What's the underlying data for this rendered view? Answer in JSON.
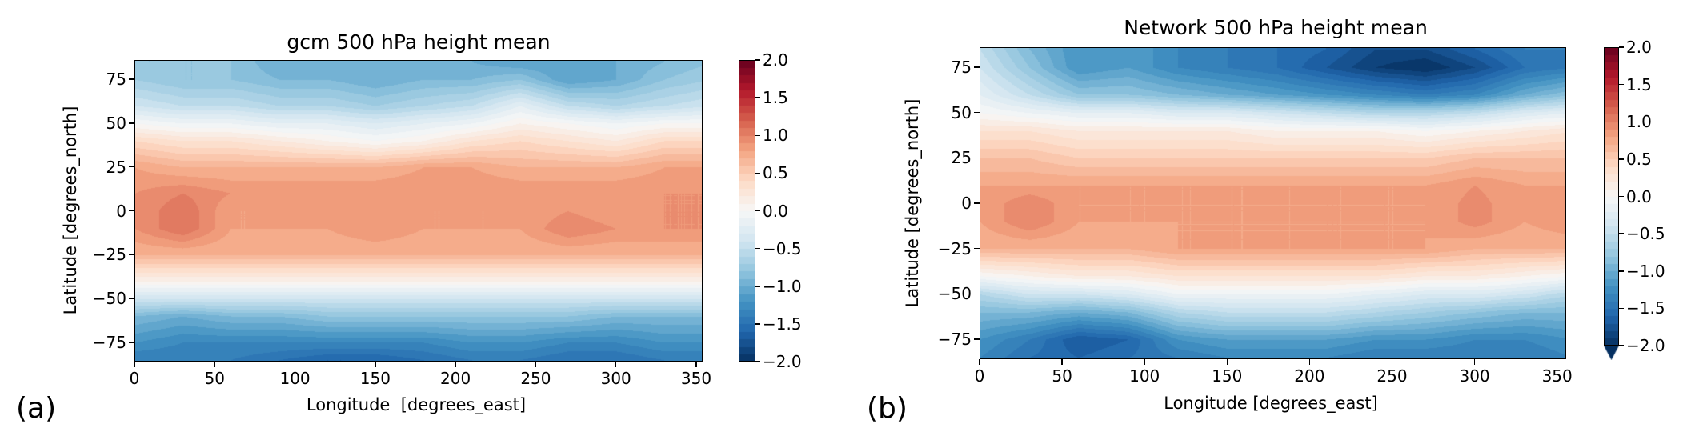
{
  "chart_data": [
    {
      "type": "heatmap",
      "panel_label": "(a)",
      "title": "gcm 500  hPa height mean",
      "xlabel": "Longitude  [degrees_east]",
      "ylabel": "Latitude  [degrees_north]",
      "xlim": [
        0,
        354
      ],
      "ylim": [
        -86,
        86
      ],
      "xticks": [
        0,
        50,
        100,
        150,
        200,
        250,
        300,
        350
      ],
      "yticks": [
        75,
        50,
        25,
        0,
        -25,
        -50,
        -75
      ],
      "colormap": "RdBu_r",
      "colorbar": {
        "range": [
          -2.0,
          2.0
        ],
        "ticks": [
          "2.0",
          "1.5",
          "1.0",
          "0.5",
          "0.0",
          "−0.5",
          "−1.0",
          "−1.5",
          "−2.0"
        ],
        "extend": "neither"
      },
      "lon": [
        0,
        30,
        60,
        90,
        120,
        150,
        180,
        210,
        240,
        270,
        300,
        330,
        360
      ],
      "lat": [
        85,
        75,
        60,
        50,
        40,
        25,
        10,
        0,
        -10,
        -25,
        -40,
        -50,
        -60,
        -75,
        -85
      ],
      "values": [
        [
          -0.8,
          -0.8,
          -0.8,
          -1.0,
          -1.0,
          -1.0,
          -1.0,
          -1.0,
          -1.1,
          -1.1,
          -1.0,
          -0.9,
          -0.8
        ],
        [
          -0.7,
          -0.8,
          -0.8,
          -0.9,
          -0.9,
          -1.0,
          -0.9,
          -0.9,
          -0.8,
          -1.1,
          -1.0,
          -0.8,
          -0.7
        ],
        [
          -0.4,
          -0.5,
          -0.5,
          -0.6,
          -0.6,
          -0.7,
          -0.6,
          -0.5,
          -0.2,
          -0.5,
          -0.6,
          -0.5,
          -0.4
        ],
        [
          0.0,
          -0.1,
          -0.1,
          -0.2,
          -0.2,
          -0.3,
          -0.2,
          -0.1,
          0.1,
          0.0,
          -0.1,
          0.0,
          0.0
        ],
        [
          0.4,
          0.3,
          0.3,
          0.2,
          0.1,
          0.0,
          0.1,
          0.3,
          0.4,
          0.3,
          0.2,
          0.4,
          0.4
        ],
        [
          0.8,
          0.7,
          0.7,
          0.7,
          0.7,
          0.7,
          0.8,
          0.8,
          0.7,
          0.7,
          0.7,
          0.8,
          0.8
        ],
        [
          0.9,
          1.0,
          0.9,
          0.9,
          0.9,
          0.9,
          0.9,
          0.9,
          0.9,
          0.9,
          0.9,
          0.9,
          0.9
        ],
        [
          0.9,
          1.1,
          0.8,
          0.8,
          0.8,
          0.9,
          0.8,
          0.8,
          0.8,
          0.9,
          0.8,
          0.9,
          0.9
        ],
        [
          0.9,
          1.1,
          0.8,
          0.8,
          0.8,
          0.9,
          0.8,
          0.8,
          0.8,
          1.0,
          0.9,
          0.9,
          0.9
        ],
        [
          0.7,
          0.7,
          0.7,
          0.7,
          0.7,
          0.7,
          0.7,
          0.7,
          0.7,
          0.7,
          0.7,
          0.7,
          0.7
        ],
        [
          0.1,
          0.1,
          0.1,
          0.1,
          0.1,
          0.1,
          0.1,
          0.1,
          0.1,
          0.1,
          0.1,
          0.1,
          0.1
        ],
        [
          -0.4,
          -0.4,
          -0.4,
          -0.4,
          -0.4,
          -0.4,
          -0.4,
          -0.4,
          -0.4,
          -0.4,
          -0.4,
          -0.4,
          -0.4
        ],
        [
          -0.9,
          -1.0,
          -0.9,
          -0.9,
          -0.8,
          -0.8,
          -0.8,
          -0.8,
          -0.8,
          -0.8,
          -0.9,
          -0.9,
          -0.9
        ],
        [
          -1.2,
          -1.3,
          -1.3,
          -1.3,
          -1.3,
          -1.3,
          -1.3,
          -1.2,
          -1.2,
          -1.3,
          -1.3,
          -1.2,
          -1.2
        ],
        [
          -1.4,
          -1.4,
          -1.4,
          -1.5,
          -1.6,
          -1.6,
          -1.5,
          -1.4,
          -1.4,
          -1.5,
          -1.5,
          -1.4,
          -1.4
        ]
      ]
    },
    {
      "type": "heatmap",
      "panel_label": "(b)",
      "title": "Network 500  hPa height  mean",
      "xlabel": "Longitude [degrees_east]",
      "ylabel": "Latitude [degrees_north]",
      "xlim": [
        0,
        355.5
      ],
      "ylim": [
        -86,
        86
      ],
      "xticks": [
        0,
        50,
        100,
        150,
        200,
        250,
        300,
        350
      ],
      "yticks": [
        75,
        50,
        25,
        0,
        -25,
        -50,
        -75
      ],
      "colormap": "RdBu_r",
      "colorbar": {
        "range": [
          -2.0,
          2.0
        ],
        "ticks": [
          "2.0",
          "1.5",
          "1.0",
          "0.5",
          "0.0",
          "−0.5",
          "−1.0",
          "−1.5",
          "−2.0"
        ],
        "extend": "min"
      },
      "lon": [
        0,
        30,
        60,
        90,
        120,
        150,
        180,
        210,
        240,
        270,
        300,
        330,
        360
      ],
      "lat": [
        85,
        75,
        60,
        50,
        40,
        25,
        10,
        0,
        -10,
        -25,
        -40,
        -50,
        -60,
        -75,
        -85
      ],
      "values": [
        [
          -0.5,
          -0.9,
          -1.2,
          -1.1,
          -1.3,
          -1.4,
          -1.5,
          -1.6,
          -1.8,
          -1.8,
          -1.6,
          -1.4,
          -1.4
        ],
        [
          -0.4,
          -0.8,
          -1.2,
          -1.1,
          -1.3,
          -1.4,
          -1.5,
          -1.7,
          -1.9,
          -2.0,
          -1.8,
          -1.5,
          -1.4
        ],
        [
          -0.2,
          -0.5,
          -0.8,
          -0.8,
          -0.9,
          -1.0,
          -1.1,
          -1.2,
          -1.3,
          -1.4,
          -1.3,
          -1.0,
          -0.8
        ],
        [
          0.0,
          -0.1,
          -0.2,
          -0.2,
          -0.3,
          -0.3,
          -0.4,
          -0.5,
          -0.6,
          -0.6,
          -0.5,
          -0.3,
          -0.2
        ],
        [
          0.3,
          0.3,
          0.2,
          0.2,
          0.2,
          0.2,
          0.1,
          0.1,
          0.1,
          0.0,
          0.1,
          0.2,
          0.3
        ],
        [
          0.6,
          0.6,
          0.5,
          0.5,
          0.5,
          0.5,
          0.5,
          0.5,
          0.5,
          0.5,
          0.6,
          0.6,
          0.6
        ],
        [
          0.8,
          0.8,
          0.8,
          0.8,
          0.8,
          0.8,
          0.8,
          0.8,
          0.8,
          0.8,
          0.9,
          0.8,
          0.8
        ],
        [
          0.8,
          1.0,
          0.8,
          0.8,
          0.8,
          0.8,
          0.8,
          0.8,
          0.8,
          0.8,
          0.95,
          0.8,
          0.9
        ],
        [
          0.8,
          1.0,
          0.8,
          0.8,
          0.8,
          0.8,
          0.8,
          0.8,
          0.8,
          0.8,
          0.95,
          0.8,
          0.9
        ],
        [
          0.7,
          0.7,
          0.7,
          0.7,
          0.8,
          0.8,
          0.8,
          0.8,
          0.8,
          0.8,
          0.7,
          0.7,
          0.7
        ],
        [
          0.0,
          0.1,
          0.2,
          0.2,
          0.3,
          0.3,
          0.3,
          0.3,
          0.3,
          0.2,
          0.2,
          0.1,
          0.0
        ],
        [
          -0.6,
          -0.4,
          -0.4,
          -0.3,
          -0.1,
          -0.1,
          -0.1,
          -0.1,
          -0.2,
          -0.3,
          -0.3,
          -0.4,
          -0.6
        ],
        [
          -0.9,
          -0.9,
          -1.0,
          -0.9,
          -0.6,
          -0.5,
          -0.5,
          -0.5,
          -0.6,
          -0.7,
          -0.8,
          -0.9,
          -0.9
        ],
        [
          -1.2,
          -1.4,
          -1.7,
          -1.6,
          -1.2,
          -1.1,
          -1.1,
          -1.1,
          -1.2,
          -1.2,
          -1.3,
          -1.3,
          -1.2
        ],
        [
          -1.3,
          -1.5,
          -1.6,
          -1.5,
          -1.4,
          -1.3,
          -1.3,
          -1.3,
          -1.4,
          -1.4,
          -1.4,
          -1.4,
          -1.3
        ]
      ]
    }
  ]
}
